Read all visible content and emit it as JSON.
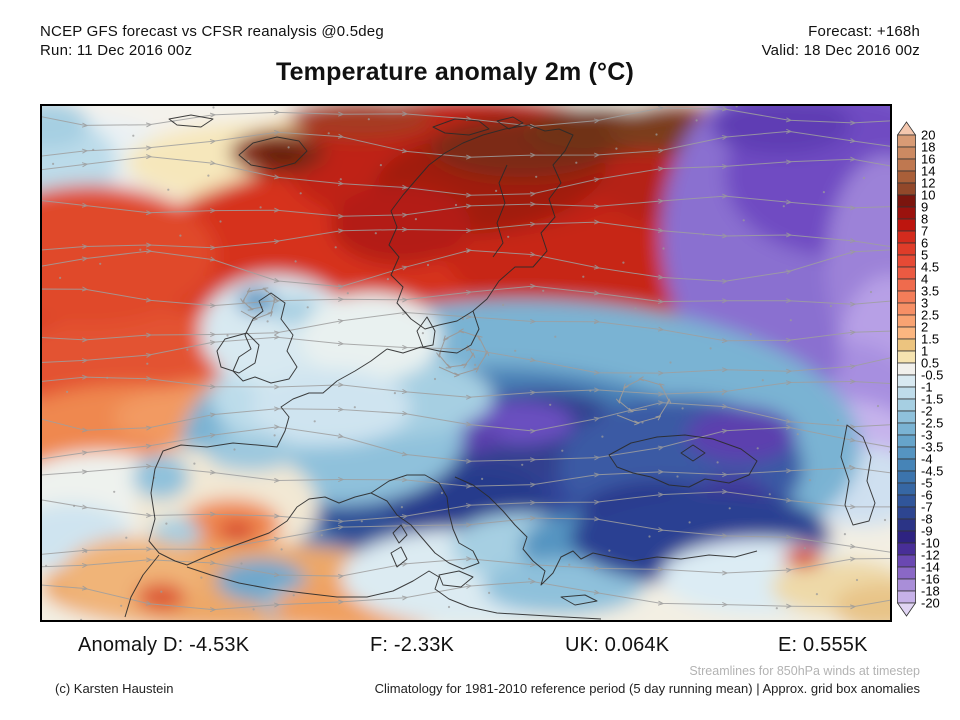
{
  "header": {
    "model_line": "NCEP GFS forecast vs CFSR reanalysis @0.5deg",
    "run_line": "Run: 11 Dec 2016 00z",
    "forecast_line": "Forecast: +168h",
    "valid_line": "Valid: 18 Dec 2016 00z",
    "title": "Temperature anomaly 2m (°C)"
  },
  "anomaly_bar": {
    "d": "Anomaly D: -4.53K",
    "f": "F: -2.33K",
    "uk": "UK: 0.064K",
    "e": "E: 0.555K"
  },
  "footer": {
    "streamlines_note": "Streamlines for 850hPa winds at timestep",
    "copyright": "(c) Karsten Haustein",
    "climatology_note": "Climatology for 1981-2010 reference period (5 day running mean) | Approx. grid box anomalies"
  },
  "chart_data": {
    "type": "heatmap",
    "title": "Temperature anomaly 2m (°C)",
    "variable": "2m temperature anomaly",
    "unit": "°C",
    "model_comparison": "NCEP GFS forecast vs CFSR reanalysis @0.5deg",
    "run": "11 Dec 2016 00z",
    "forecast_lead": "+168h",
    "valid": "18 Dec 2016 00z",
    "region": "Europe / North Atlantic",
    "overlay": "Streamlines for 850hPa winds at timestep",
    "climatology": "1981-2010 reference period (5 day running mean)",
    "grid_note": "Approx. grid box anomalies",
    "regional_mean_anomalies_K": {
      "D": -4.53,
      "F": -2.33,
      "UK": 0.064,
      "E": 0.555
    },
    "notable_features": [
      "strong warm anomaly (+5 to +12 °C) over Iceland, the Nordic Seas, Scandinavia and NW Russia",
      "cold anomaly (-4 to -14 °C) over central/eastern Europe, the Balkans, Turkey and the Black Sea region",
      "very cold anomaly (down to -20 °C, purple) in the far northeast (top-right of map)",
      "near-neutral to slightly warm conditions over Iberia and NW Africa"
    ],
    "colorbar": {
      "unit": "°C",
      "labels": [
        "20",
        "18",
        "16",
        "14",
        "12",
        "10",
        "9",
        "8",
        "7",
        "6",
        "5",
        "4.5",
        "4",
        "3.5",
        "3",
        "2.5",
        "2",
        "1.5",
        "1",
        "0.5",
        "-0.5",
        "-1",
        "-1.5",
        "-2",
        "-2.5",
        "-3",
        "-3.5",
        "-4",
        "-4.5",
        "-5",
        "-6",
        "-7",
        "-8",
        "-9",
        "-10",
        "-12",
        "-14",
        "-16",
        "-18",
        "-20"
      ],
      "colors": [
        "#f4c7ae",
        "#d89b75",
        "#cc8a62",
        "#bf7850",
        "#a95f39",
        "#92482a",
        "#7b150e",
        "#9b120e",
        "#bd150e",
        "#d32b1d",
        "#df3c29",
        "#e64a35",
        "#eb5a42",
        "#ef6b4d",
        "#f37d59",
        "#f68f65",
        "#f9a372",
        "#fbb680",
        "#ecc47f",
        "#f5e3b0",
        "#f1f0ec",
        "#d8e9f1",
        "#bfdcea",
        "#a6cfe2",
        "#8fc1db",
        "#7ab3d3",
        "#66a4ca",
        "#5594c1",
        "#4684b7",
        "#3c74ad",
        "#3667a4",
        "#30559a",
        "#2d4590",
        "#2b3486",
        "#2e2381",
        "#482e97",
        "#6a48b2",
        "#8a68c6",
        "#a98ed8",
        "#c6b1e8",
        "#e1d5f4"
      ]
    }
  }
}
